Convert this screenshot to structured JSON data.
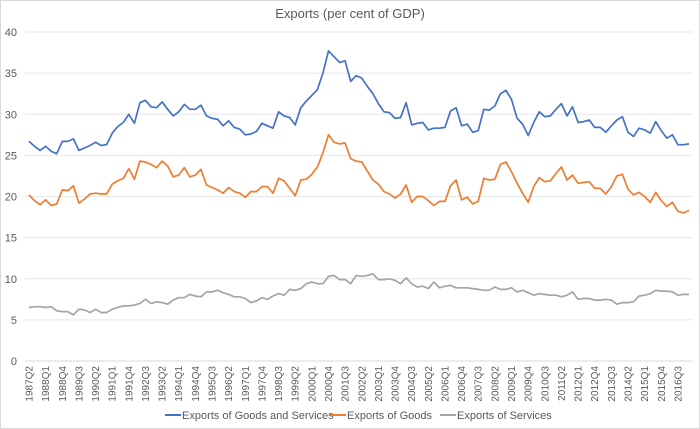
{
  "chart_data": {
    "type": "line",
    "title": "Exports (per cent of GDP)",
    "xlabel": "",
    "ylabel": "",
    "ylim": [
      0,
      40
    ],
    "yticks": [
      0,
      5,
      10,
      15,
      20,
      25,
      30,
      35,
      40
    ],
    "grid": true,
    "legend_position": "bottom",
    "x_tick_every": 3,
    "categories": [
      "1987Q2",
      "1987Q3",
      "1987Q4",
      "1988Q1",
      "1988Q2",
      "1988Q3",
      "1988Q4",
      "1989Q1",
      "1989Q2",
      "1989Q3",
      "1989Q4",
      "1990Q1",
      "1990Q2",
      "1990Q3",
      "1990Q4",
      "1991Q1",
      "1991Q2",
      "1991Q3",
      "1991Q4",
      "1992Q1",
      "1992Q2",
      "1992Q3",
      "1992Q4",
      "1993Q1",
      "1993Q2",
      "1993Q3",
      "1993Q4",
      "1994Q1",
      "1994Q2",
      "1994Q3",
      "1994Q4",
      "1995Q1",
      "1995Q2",
      "1995Q3",
      "1995Q4",
      "1996Q1",
      "1996Q2",
      "1996Q3",
      "1996Q4",
      "1997Q1",
      "1997Q2",
      "1997Q3",
      "1997Q4",
      "1998Q1",
      "1998Q2",
      "1998Q3",
      "1998Q4",
      "1999Q1",
      "1999Q2",
      "1999Q3",
      "1999Q4",
      "2000Q1",
      "2000Q2",
      "2000Q3",
      "2000Q4",
      "2001Q1",
      "2001Q2",
      "2001Q3",
      "2001Q4",
      "2002Q1",
      "2002Q2",
      "2002Q3",
      "2002Q4",
      "2003Q1",
      "2003Q2",
      "2003Q3",
      "2003Q4",
      "2004Q1",
      "2004Q2",
      "2004Q3",
      "2004Q4",
      "2005Q1",
      "2005Q2",
      "2005Q3",
      "2005Q4",
      "2006Q1",
      "2006Q2",
      "2006Q3",
      "2006Q4",
      "2007Q1",
      "2007Q2",
      "2007Q3",
      "2007Q4",
      "2008Q1",
      "2008Q2",
      "2008Q3",
      "2008Q4",
      "2009Q1",
      "2009Q2",
      "2009Q3",
      "2009Q4",
      "2010Q1",
      "2010Q2",
      "2010Q3",
      "2010Q4",
      "2011Q1",
      "2011Q2",
      "2011Q3",
      "2011Q4",
      "2012Q1",
      "2012Q2",
      "2012Q3",
      "2012Q4",
      "2013Q1",
      "2013Q2",
      "2013Q3",
      "2013Q4",
      "2014Q1",
      "2014Q2",
      "2014Q3",
      "2014Q4",
      "2015Q1",
      "2015Q2",
      "2015Q3",
      "2015Q4",
      "2016Q1",
      "2016Q2",
      "2016Q3",
      "2016Q4",
      "2017Q1"
    ],
    "series": [
      {
        "name": "Exports of Goods and Services",
        "color": "#4472C4",
        "values": [
          26.7,
          26.1,
          25.6,
          26.1,
          25.5,
          25.2,
          26.7,
          26.7,
          27.0,
          25.6,
          25.9,
          26.2,
          26.6,
          26.2,
          26.3,
          27.7,
          28.5,
          29.0,
          30.0,
          28.9,
          31.4,
          31.7,
          30.9,
          30.8,
          31.5,
          30.6,
          29.8,
          30.3,
          31.2,
          30.6,
          30.6,
          31.1,
          29.8,
          29.5,
          29.4,
          28.6,
          29.2,
          28.4,
          28.2,
          27.5,
          27.6,
          27.9,
          28.9,
          28.6,
          28.3,
          30.3,
          29.8,
          29.6,
          28.7,
          30.8,
          31.6,
          32.3,
          33.0,
          35.0,
          37.7,
          37.0,
          36.3,
          36.5,
          34.0,
          34.7,
          34.4,
          33.4,
          32.5,
          31.3,
          30.3,
          30.2,
          29.5,
          29.6,
          31.4,
          28.7,
          28.9,
          29.0,
          28.1,
          28.3,
          28.3,
          28.4,
          30.4,
          30.8,
          28.6,
          28.8,
          27.8,
          28.0,
          30.6,
          30.5,
          31.0,
          32.5,
          32.9,
          31.8,
          29.5,
          28.8,
          27.4,
          29.0,
          30.3,
          29.7,
          29.8,
          30.6,
          31.3,
          29.8,
          30.9,
          29.0,
          29.1,
          29.3,
          28.4,
          28.4,
          27.8,
          28.6,
          29.3,
          29.7,
          27.8,
          27.3,
          28.3,
          28.1,
          27.7,
          29.1,
          28.0,
          27.1,
          27.5,
          26.3,
          26.3,
          26.4
        ]
      },
      {
        "name": "Exports of Goods",
        "color": "#ED7D31",
        "values": [
          20.2,
          19.5,
          19.0,
          19.6,
          18.9,
          19.1,
          20.8,
          20.7,
          21.3,
          19.2,
          19.7,
          20.3,
          20.4,
          20.3,
          20.3,
          21.5,
          21.9,
          22.2,
          23.4,
          22.1,
          24.3,
          24.2,
          23.9,
          23.5,
          24.3,
          23.7,
          22.4,
          22.6,
          23.5,
          22.4,
          22.6,
          23.3,
          21.4,
          21.1,
          20.8,
          20.4,
          21.1,
          20.6,
          20.4,
          19.9,
          20.6,
          20.6,
          21.2,
          21.2,
          20.4,
          22.2,
          21.9,
          21.0,
          20.1,
          22.0,
          22.1,
          22.7,
          23.6,
          25.3,
          27.5,
          26.6,
          26.4,
          26.5,
          24.6,
          24.3,
          24.2,
          23.1,
          22.0,
          21.5,
          20.6,
          20.3,
          19.8,
          20.3,
          21.4,
          19.3,
          20.0,
          20.0,
          19.5,
          18.9,
          19.4,
          19.4,
          21.3,
          22.0,
          19.6,
          19.9,
          19.1,
          19.4,
          22.2,
          22.0,
          22.1,
          23.9,
          24.2,
          23.0,
          21.6,
          20.4,
          19.3,
          21.2,
          22.3,
          21.8,
          21.9,
          22.8,
          23.6,
          22.0,
          22.6,
          21.6,
          21.7,
          21.8,
          21.0,
          21.0,
          20.3,
          21.2,
          22.5,
          22.7,
          20.9,
          20.2,
          20.5,
          20.0,
          19.3,
          20.5,
          19.5,
          18.8,
          19.3,
          18.2,
          18.0,
          18.3
        ]
      },
      {
        "name": "Exports of Services",
        "color": "#A5A5A5",
        "values": [
          6.5,
          6.6,
          6.6,
          6.5,
          6.6,
          6.1,
          6.0,
          6.0,
          5.6,
          6.3,
          6.2,
          5.9,
          6.3,
          5.9,
          5.9,
          6.3,
          6.5,
          6.7,
          6.7,
          6.8,
          7.0,
          7.5,
          7.0,
          7.2,
          7.1,
          6.9,
          7.4,
          7.7,
          7.7,
          8.1,
          7.9,
          7.8,
          8.4,
          8.4,
          8.6,
          8.3,
          8.1,
          7.8,
          7.8,
          7.6,
          7.1,
          7.3,
          7.7,
          7.5,
          7.9,
          8.2,
          8.0,
          8.7,
          8.6,
          8.8,
          9.4,
          9.6,
          9.4,
          9.4,
          10.3,
          10.4,
          9.9,
          9.9,
          9.4,
          10.4,
          10.3,
          10.4,
          10.6,
          9.9,
          9.9,
          10.0,
          9.8,
          9.4,
          10.1,
          9.4,
          9.0,
          9.1,
          8.8,
          9.6,
          8.9,
          9.1,
          9.2,
          8.9,
          8.9,
          8.9,
          8.8,
          8.7,
          8.6,
          8.6,
          9.0,
          8.7,
          8.7,
          8.9,
          8.4,
          8.6,
          8.3,
          8.0,
          8.2,
          8.1,
          8.0,
          8.0,
          7.8,
          8.0,
          8.4,
          7.5,
          7.6,
          7.6,
          7.4,
          7.4,
          7.5,
          7.4,
          6.9,
          7.1,
          7.1,
          7.2,
          7.9,
          8.0,
          8.2,
          8.6,
          8.5,
          8.5,
          8.4,
          8.0,
          8.1,
          8.1
        ]
      }
    ]
  }
}
